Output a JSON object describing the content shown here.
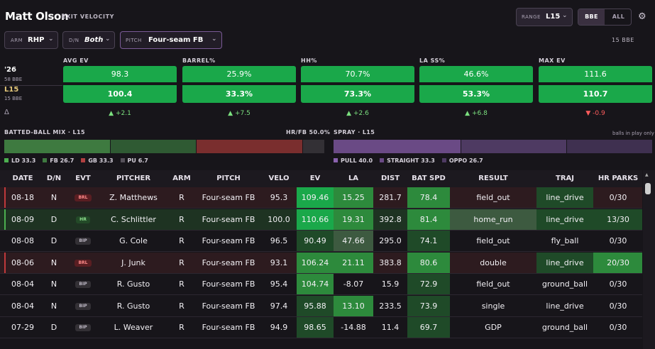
{
  "header": {
    "player_name": "Matt Olson",
    "subtitle": "EXIT VELOCITY",
    "range_label": "RANGE",
    "range_value": "L15",
    "toggle_on": "BBE",
    "toggle_off": "ALL"
  },
  "filters": {
    "arm_label": "ARM",
    "arm_value": "RHP",
    "dn_label": "D/N",
    "dn_value": "Both",
    "pitch_label": "PITCH",
    "pitch_value": "Four-seam FB",
    "bbe_count": "15 BBE"
  },
  "metrics_rows": {
    "season_label": "'26",
    "season_sub": "58 BBE",
    "l15_label": "L15",
    "l15_sub": "15 BBE",
    "delta_label": "Δ"
  },
  "metrics": [
    {
      "header": "AVG EV",
      "season": "98.3",
      "l15": "100.4",
      "delta": "▲ +2.1",
      "delta_dir": "pos"
    },
    {
      "header": "BARREL%",
      "season": "25.9%",
      "l15": "33.3%",
      "delta": "▲ +7.5",
      "delta_dir": "pos"
    },
    {
      "header": "HH%",
      "season": "70.7%",
      "l15": "73.3%",
      "delta": "▲ +2.6",
      "delta_dir": "pos"
    },
    {
      "header": "LA SS%",
      "season": "46.6%",
      "l15": "53.3%",
      "delta": "▲ +6.8",
      "delta_dir": "pos"
    },
    {
      "header": "MAX EV",
      "season": "111.6",
      "l15": "110.7",
      "delta": "▼ -0.9",
      "delta_dir": "neg"
    }
  ],
  "batted_ball_mix": {
    "title": "BATTED-BALL MIX · L15",
    "hrfb": "HR/FB 50.0%",
    "segments": [
      {
        "label": "LD",
        "value": 33.3,
        "color": "#3e7a40"
      },
      {
        "label": "FB",
        "value": 26.7,
        "color": "#2f5a33"
      },
      {
        "label": "GB",
        "value": 33.3,
        "color": "#7a2e2e"
      },
      {
        "label": "PU",
        "value": 6.7,
        "color": "#333035"
      }
    ],
    "legend": [
      {
        "text": "LD 33.3",
        "color": "#4caf50"
      },
      {
        "text": "FB 26.7",
        "color": "#3e7a40"
      },
      {
        "text": "GB 33.3",
        "color": "#b04040"
      },
      {
        "text": "PU 6.7",
        "color": "#555059"
      }
    ]
  },
  "spray": {
    "title": "SPRAY · L15",
    "note": "balls in play only",
    "segments": [
      {
        "label": "PULL",
        "value": 40.0,
        "color": "#6a4a85"
      },
      {
        "label": "STRAIGHT",
        "value": 33.3,
        "color": "#4e3a62"
      },
      {
        "label": "OPPO",
        "value": 26.7,
        "color": "#3f3050"
      }
    ],
    "legend": [
      {
        "text": "PULL 40.0",
        "color": "#8a62ae"
      },
      {
        "text": "STRAIGHT 33.3",
        "color": "#6a4a85"
      },
      {
        "text": "OPPO 26.7",
        "color": "#4e3a62"
      }
    ]
  },
  "table": {
    "columns": [
      "DATE",
      "D/N",
      "EVT",
      "PITCHER",
      "ARM",
      "PITCH",
      "VELO",
      "EV",
      "LA",
      "DIST",
      "BAT SPD",
      "RESULT",
      "TRAJ",
      "HR PARKS"
    ],
    "rows": [
      {
        "date": "08-18",
        "dn": "N",
        "evt": "BRL",
        "pitcher": "Z. Matthews",
        "arm": "R",
        "pitch": "Four-seam FB",
        "velo": "95.3",
        "ev": "109.46",
        "la": "15.25",
        "dist": "281.7",
        "bat_spd": "78.4",
        "result": "field_out",
        "traj": "line_drive",
        "hr_parks": "0/30"
      },
      {
        "date": "08-09",
        "dn": "D",
        "evt": "HR",
        "pitcher": "C. Schlittler",
        "arm": "R",
        "pitch": "Four-seam FB",
        "velo": "100.0",
        "ev": "110.66",
        "la": "19.31",
        "dist": "392.8",
        "bat_spd": "81.4",
        "result": "home_run",
        "traj": "line_drive",
        "hr_parks": "13/30"
      },
      {
        "date": "08-08",
        "dn": "D",
        "evt": "BIP",
        "pitcher": "G. Cole",
        "arm": "R",
        "pitch": "Four-seam FB",
        "velo": "96.5",
        "ev": "90.49",
        "la": "47.66",
        "dist": "295.0",
        "bat_spd": "74.1",
        "result": "field_out",
        "traj": "fly_ball",
        "hr_parks": "0/30"
      },
      {
        "date": "08-06",
        "dn": "N",
        "evt": "BRL",
        "pitcher": "J. Junk",
        "arm": "R",
        "pitch": "Four-seam FB",
        "velo": "93.1",
        "ev": "106.24",
        "la": "21.11",
        "dist": "383.8",
        "bat_spd": "80.6",
        "result": "double",
        "traj": "line_drive",
        "hr_parks": "20/30"
      },
      {
        "date": "08-04",
        "dn": "N",
        "evt": "BIP",
        "pitcher": "R. Gusto",
        "arm": "R",
        "pitch": "Four-seam FB",
        "velo": "95.4",
        "ev": "104.74",
        "la": "-8.07",
        "dist": "15.9",
        "bat_spd": "72.9",
        "result": "field_out",
        "traj": "ground_ball",
        "hr_parks": "0/30"
      },
      {
        "date": "08-04",
        "dn": "N",
        "evt": "BIP",
        "pitcher": "R. Gusto",
        "arm": "R",
        "pitch": "Four-seam FB",
        "velo": "97.4",
        "ev": "95.88",
        "la": "13.10",
        "dist": "233.5",
        "bat_spd": "73.9",
        "result": "single",
        "traj": "line_drive",
        "hr_parks": "0/30"
      },
      {
        "date": "07-29",
        "dn": "D",
        "evt": "BIP",
        "pitcher": "L. Weaver",
        "arm": "R",
        "pitch": "Four-seam FB",
        "velo": "94.9",
        "ev": "98.65",
        "la": "-14.88",
        "dist": "11.4",
        "bat_spd": "69.7",
        "result": "GDP",
        "traj": "ground_ball",
        "hr_parks": "0/30"
      }
    ]
  },
  "colors": {
    "bg": "#17151a",
    "bright_green": "#1aa84a",
    "mid_green": "#2d8a3c",
    "dark_green": "#1f4a28",
    "muted_green": "#3d5a40",
    "barrel_row": "#2d1b1f",
    "hr_row": "#1e3322",
    "brl_badge": "#5a1e22",
    "hr_badge": "#234a28",
    "bip_badge": "#333035"
  }
}
